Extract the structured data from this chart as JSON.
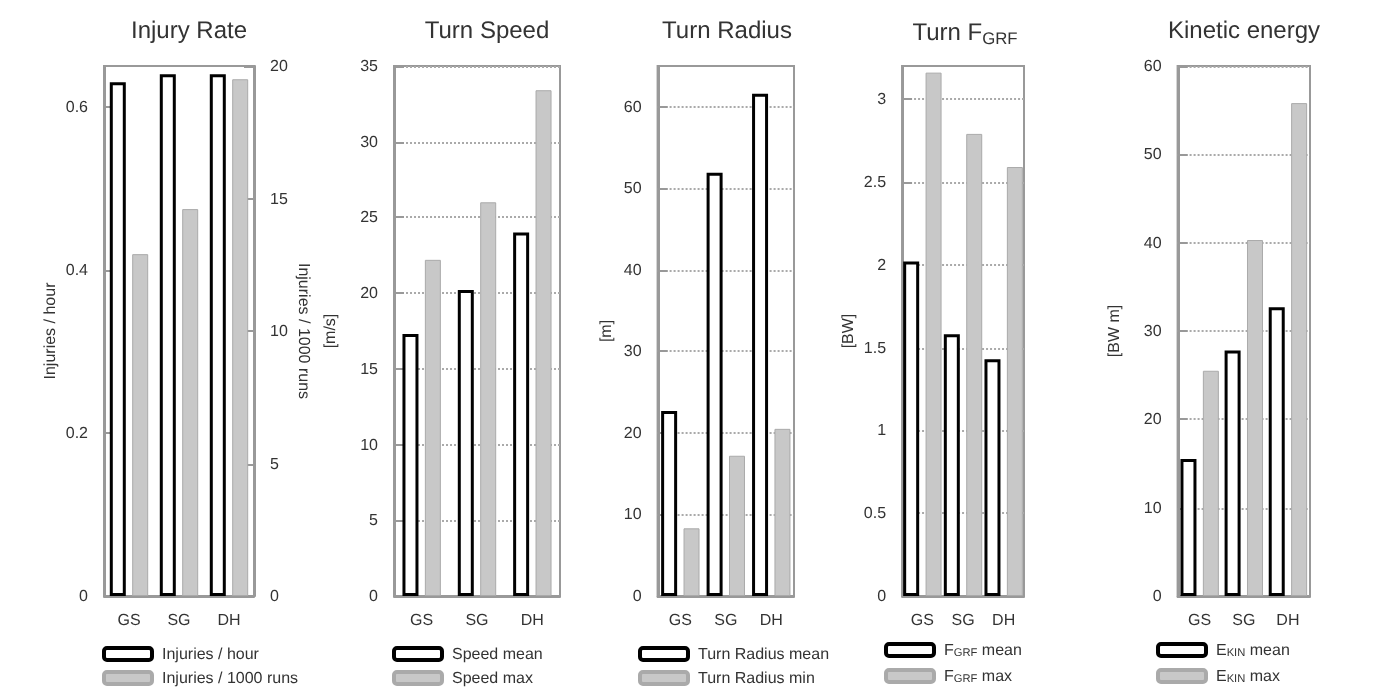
{
  "chart_data": [
    {
      "type": "bar",
      "title": "Injury Rate",
      "ylabel": "Injuries / hour",
      "y2label": "Injuries / 1000 runs",
      "categories": [
        "GS",
        "SG",
        "DH"
      ],
      "series": [
        {
          "name": "Injuries / hour",
          "color": "#ffffff",
          "values": [
            0.63,
            0.64,
            0.64
          ]
        },
        {
          "name": "Injuries / 1000 runs",
          "color": "#c8c8c8",
          "values": [
            12.9,
            14.6,
            19.5
          ],
          "axis": "y2"
        }
      ],
      "ylim": [
        0,
        0.65
      ],
      "yticks": [
        0,
        0.2,
        0.4,
        0.6
      ],
      "y2lim": [
        0,
        20
      ],
      "y2ticks": [
        0,
        5,
        10,
        15,
        20
      ],
      "grid": false,
      "legend": "bottom"
    },
    {
      "type": "bar",
      "title": "Turn Speed",
      "ylabel": "[m/s]",
      "categories": [
        "GS",
        "SG",
        "DH"
      ],
      "series": [
        {
          "name": "Speed mean",
          "color": "#ffffff",
          "values": [
            17.3,
            20.2,
            24.0
          ]
        },
        {
          "name": "Speed max",
          "color": "#c8c8c8",
          "values": [
            22.2,
            26.0,
            33.4
          ]
        }
      ],
      "ylim": [
        0,
        35
      ],
      "yticks": [
        0,
        5,
        10,
        15,
        20,
        25,
        30,
        35
      ],
      "grid": "y",
      "legend": "bottom"
    },
    {
      "type": "bar",
      "title": "Turn Radius",
      "ylabel": "[m]",
      "categories": [
        "GS",
        "SG",
        "DH"
      ],
      "series": [
        {
          "name": "Turn Radius mean",
          "color": "#ffffff",
          "values": [
            22.7,
            51.9,
            61.6
          ]
        },
        {
          "name": "Turn Radius min",
          "color": "#c8c8c8",
          "values": [
            8.3,
            17.2,
            20.5
          ]
        }
      ],
      "ylim": [
        0,
        65
      ],
      "yticks": [
        0,
        10,
        20,
        30,
        40,
        50,
        60
      ],
      "grid": "y",
      "legend": "bottom"
    },
    {
      "type": "bar",
      "title": "Turn F$_{GRF}$",
      "ylabel": "[BW]",
      "categories": [
        "GS",
        "SG",
        "DH"
      ],
      "series": [
        {
          "name": "F$_{GRF}$ mean",
          "color": "#ffffff",
          "values": [
            2.02,
            1.58,
            1.43
          ]
        },
        {
          "name": "F$_{GRF}$ max",
          "color": "#c8c8c8",
          "values": [
            3.16,
            2.79,
            2.59
          ]
        }
      ],
      "ylim": [
        0,
        3.2
      ],
      "yticks": [
        0,
        0.5,
        1,
        1.5,
        2,
        2.5,
        3
      ],
      "grid": "y",
      "legend": "bottom"
    },
    {
      "type": "bar",
      "title": "Kinetic energy",
      "ylabel": "[BW m]",
      "categories": [
        "GS",
        "SG",
        "DH"
      ],
      "series": [
        {
          "name": "E$_{KIN}$ mean",
          "color": "#ffffff",
          "values": [
            15.5,
            27.8,
            32.7
          ]
        },
        {
          "name": "E$_{KIN}$ max",
          "color": "#c8c8c8",
          "values": [
            25.5,
            40.3,
            55.8
          ]
        }
      ],
      "ylim": [
        0,
        60
      ],
      "yticks": [
        0,
        10,
        20,
        30,
        40,
        50,
        60
      ],
      "grid": "y",
      "legend": "bottom"
    }
  ]
}
